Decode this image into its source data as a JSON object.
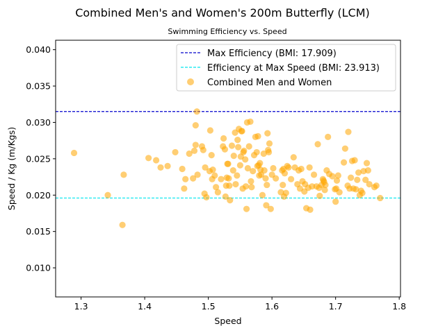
{
  "chart_data": {
    "type": "scatter",
    "title": "Combined Men's and Women's 200m Butterfly (LCM)",
    "subtitle": "Swimming Efficiency vs. Speed",
    "xlabel": "Speed",
    "ylabel": "Speed / Kg (m/Kgs)",
    "xlim": [
      1.26,
      1.802
    ],
    "ylim": [
      0.006,
      0.0413
    ],
    "xticks": [
      1.3,
      1.4,
      1.5,
      1.6,
      1.7,
      1.8
    ],
    "xtick_labels": [
      "1.3",
      "1.4",
      "1.5",
      "1.6",
      "1.7",
      "1.8"
    ],
    "yticks": [
      0.01,
      0.015,
      0.02,
      0.025,
      0.03,
      0.035,
      0.04
    ],
    "ytick_labels": [
      "0.010",
      "0.015",
      "0.020",
      "0.025",
      "0.030",
      "0.035",
      "0.040"
    ],
    "grid": false,
    "legend_position": "upper-right",
    "hlines": [
      {
        "label": "Max Efficiency (BMI: 17.909)",
        "y": 0.0315,
        "color": "#0000cc",
        "style": "dashed"
      },
      {
        "label": "Efficiency at Max Speed (BMI: 23.913)",
        "y": 0.0196,
        "color": "#00e5ee",
        "style": "dashed"
      }
    ],
    "series": [
      {
        "name": "Combined Men and Women",
        "color": "#ffa500",
        "points": [
          [
            1.289,
            0.0258
          ],
          [
            1.342,
            0.02
          ],
          [
            1.365,
            0.0159
          ],
          [
            1.367,
            0.0228
          ],
          [
            1.406,
            0.0251
          ],
          [
            1.418,
            0.0248
          ],
          [
            1.425,
            0.0238
          ],
          [
            1.436,
            0.024
          ],
          [
            1.448,
            0.0259
          ],
          [
            1.459,
            0.0236
          ],
          [
            1.462,
            0.0209
          ],
          [
            1.464,
            0.0222
          ],
          [
            1.47,
            0.0257
          ],
          [
            1.476,
            0.0223
          ],
          [
            1.478,
            0.0261
          ],
          [
            1.48,
            0.0296
          ],
          [
            1.48,
            0.0269
          ],
          [
            1.482,
            0.0315
          ],
          [
            1.483,
            0.0228
          ],
          [
            1.49,
            0.0267
          ],
          [
            1.492,
            0.0262
          ],
          [
            1.494,
            0.0202
          ],
          [
            1.495,
            0.0238
          ],
          [
            1.497,
            0.0197
          ],
          [
            1.502,
            0.0233
          ],
          [
            1.503,
            0.0289
          ],
          [
            1.505,
            0.0255
          ],
          [
            1.506,
            0.0222
          ],
          [
            1.507,
            0.0235
          ],
          [
            1.51,
            0.0227
          ],
          [
            1.512,
            0.0211
          ],
          [
            1.515,
            0.0204
          ],
          [
            1.52,
            0.0222
          ],
          [
            1.523,
            0.0267
          ],
          [
            1.524,
            0.0278
          ],
          [
            1.526,
            0.0263
          ],
          [
            1.527,
            0.0198
          ],
          [
            1.528,
            0.0213
          ],
          [
            1.529,
            0.0224
          ],
          [
            1.53,
            0.0243
          ],
          [
            1.531,
            0.0243
          ],
          [
            1.532,
            0.0223
          ],
          [
            1.533,
            0.0213
          ],
          [
            1.534,
            0.0193
          ],
          [
            1.537,
            0.0268
          ],
          [
            1.539,
            0.0234
          ],
          [
            1.54,
            0.0254
          ],
          [
            1.542,
            0.0286
          ],
          [
            1.543,
            0.0215
          ],
          [
            1.545,
            0.0227
          ],
          [
            1.546,
            0.0276
          ],
          [
            1.547,
            0.0266
          ],
          [
            1.548,
            0.0291
          ],
          [
            1.55,
            0.0241
          ],
          [
            1.551,
            0.0253
          ],
          [
            1.552,
            0.0288
          ],
          [
            1.553,
            0.0288
          ],
          [
            1.554,
            0.0209
          ],
          [
            1.555,
            0.0259
          ],
          [
            1.556,
            0.0261
          ],
          [
            1.558,
            0.0249
          ],
          [
            1.559,
            0.0212
          ],
          [
            1.56,
            0.0181
          ],
          [
            1.561,
            0.03
          ],
          [
            1.562,
            0.0237
          ],
          [
            1.564,
            0.0267
          ],
          [
            1.566,
            0.0301
          ],
          [
            1.567,
            0.0219
          ],
          [
            1.568,
            0.0211
          ],
          [
            1.57,
            0.0233
          ],
          [
            1.572,
            0.0255
          ],
          [
            1.574,
            0.028
          ],
          [
            1.576,
            0.0259
          ],
          [
            1.577,
            0.024
          ],
          [
            1.578,
            0.0281
          ],
          [
            1.579,
            0.0241
          ],
          [
            1.58,
            0.0227
          ],
          [
            1.581,
            0.0244
          ],
          [
            1.582,
            0.0235
          ],
          [
            1.583,
            0.0228
          ],
          [
            1.585,
            0.02
          ],
          [
            1.587,
            0.0257
          ],
          [
            1.588,
            0.0234
          ],
          [
            1.59,
            0.0223
          ],
          [
            1.591,
            0.0186
          ],
          [
            1.592,
            0.0214
          ],
          [
            1.593,
            0.0285
          ],
          [
            1.594,
            0.0262
          ],
          [
            1.595,
            0.0259
          ],
          [
            1.596,
            0.0271
          ],
          [
            1.598,
            0.0181
          ],
          [
            1.6,
            0.0228
          ],
          [
            1.602,
            0.0237
          ],
          [
            1.606,
            0.0223
          ],
          [
            1.614,
            0.0204
          ],
          [
            1.616,
            0.0234
          ],
          [
            1.617,
            0.0214
          ],
          [
            1.618,
            0.0236
          ],
          [
            1.619,
            0.0198
          ],
          [
            1.62,
            0.023
          ],
          [
            1.622,
            0.0203
          ],
          [
            1.624,
            0.024
          ],
          [
            1.626,
            0.0238
          ],
          [
            1.63,
            0.0222
          ],
          [
            1.634,
            0.0252
          ],
          [
            1.636,
            0.0238
          ],
          [
            1.64,
            0.0215
          ],
          [
            1.642,
            0.0234
          ],
          [
            1.644,
            0.0209
          ],
          [
            1.646,
            0.0236
          ],
          [
            1.648,
            0.0219
          ],
          [
            1.651,
            0.0205
          ],
          [
            1.652,
            0.0215
          ],
          [
            1.654,
            0.0182
          ],
          [
            1.657,
            0.021
          ],
          [
            1.659,
            0.0238
          ],
          [
            1.66,
            0.018
          ],
          [
            1.663,
            0.0212
          ],
          [
            1.666,
            0.0228
          ],
          [
            1.67,
            0.0212
          ],
          [
            1.672,
            0.027
          ],
          [
            1.674,
            0.021
          ],
          [
            1.675,
            0.0199
          ],
          [
            1.678,
            0.0214
          ],
          [
            1.68,
            0.0222
          ],
          [
            1.681,
            0.022
          ],
          [
            1.682,
            0.0218
          ],
          [
            1.683,
            0.0207
          ],
          [
            1.684,
            0.0214
          ],
          [
            1.686,
            0.0234
          ],
          [
            1.688,
            0.028
          ],
          [
            1.69,
            0.0229
          ],
          [
            1.695,
            0.0226
          ],
          [
            1.699,
            0.0208
          ],
          [
            1.7,
            0.0191
          ],
          [
            1.701,
            0.0209
          ],
          [
            1.702,
            0.022
          ],
          [
            1.704,
            0.0227
          ],
          [
            1.706,
            0.0204
          ],
          [
            1.713,
            0.0245
          ],
          [
            1.715,
            0.0264
          ],
          [
            1.719,
            0.0213
          ],
          [
            1.72,
            0.0287
          ],
          [
            1.722,
            0.0209
          ],
          [
            1.724,
            0.0224
          ],
          [
            1.726,
            0.0247
          ],
          [
            1.728,
            0.0209
          ],
          [
            1.73,
            0.0248
          ],
          [
            1.732,
            0.0208
          ],
          [
            1.734,
            0.0221
          ],
          [
            1.736,
            0.0231
          ],
          [
            1.738,
            0.02
          ],
          [
            1.74,
            0.0206
          ],
          [
            1.742,
            0.0203
          ],
          [
            1.744,
            0.0233
          ],
          [
            1.747,
            0.0221
          ],
          [
            1.749,
            0.0244
          ],
          [
            1.751,
            0.0234
          ],
          [
            1.753,
            0.0215
          ],
          [
            1.761,
            0.0211
          ],
          [
            1.764,
            0.0213
          ],
          [
            1.77,
            0.0196
          ]
        ]
      }
    ]
  }
}
